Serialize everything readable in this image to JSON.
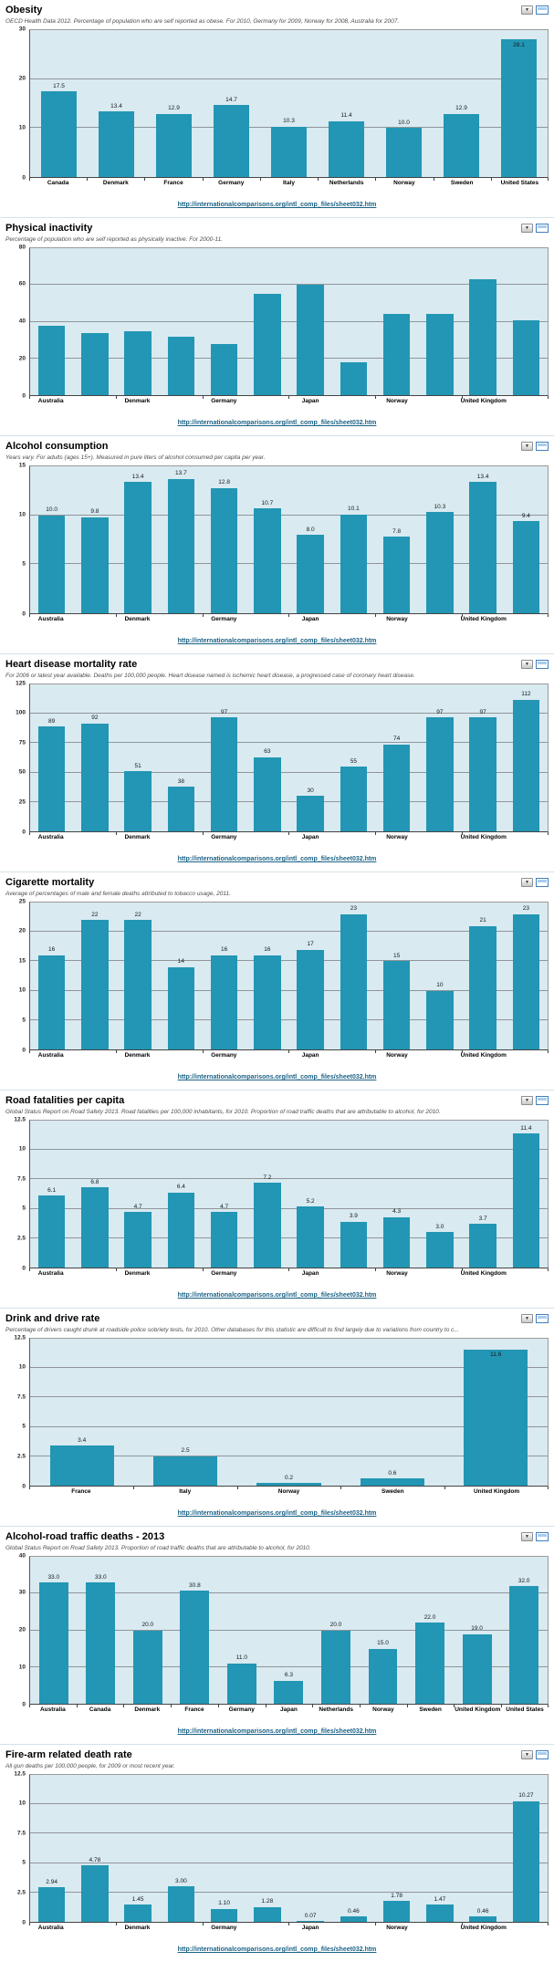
{
  "source_link": "http://internationalcomparisons.org/intl_comp_files/sheet032.htm",
  "colors": {
    "bar": "#2296b4",
    "plot_background": "#d9eaf1",
    "gridline": "#8f9698",
    "link": "#1b6286"
  },
  "chart_data": [
    {
      "type": "bar",
      "title": "Obesity",
      "subtitle": "OECD Health Data 2012. Percentage of population who are self reported as obese. For 2010, Germany for 2009, Norway for 2008, Australia for 2007.",
      "ylim": [
        0,
        30
      ],
      "yticks": [
        0,
        10,
        20,
        30
      ],
      "x_labels": [
        "Canada",
        "Denmark",
        "France",
        "Germany",
        "Italy",
        "Netherlands",
        "Norway",
        "Sweden",
        "United States"
      ],
      "values": [
        17.5,
        13.4,
        12.9,
        14.7,
        10.3,
        11.4,
        10.0,
        12.9,
        28.1
      ],
      "value_labels": [
        "17.5",
        "13.4",
        "12.9",
        "14.7",
        "10.3",
        "11.4",
        "10.0",
        "12.9",
        "28.1"
      ],
      "tick_every": 1,
      "source_link": "http://internationalcomparisons.org/intl_comp_files/sheet032.htm"
    },
    {
      "type": "bar",
      "title": "Physical inactivity",
      "subtitle": "Percentage of population who are self reported as physically inactive. For 2000-11.",
      "ylim": [
        0,
        80
      ],
      "yticks": [
        0,
        20,
        40,
        60,
        80
      ],
      "x_labels": [
        "Australia",
        "",
        "Denmark",
        "",
        "Germany",
        "",
        "Japan",
        "",
        "Norway",
        "",
        "United Kingdom",
        ""
      ],
      "values": [
        38,
        34,
        35,
        32,
        28,
        55,
        60,
        18,
        44,
        44,
        63,
        41
      ],
      "value_labels": null,
      "tick_every": 2,
      "source_link": "http://internationalcomparisons.org/intl_comp_files/sheet032.htm"
    },
    {
      "type": "bar",
      "title": "Alcohol consumption",
      "subtitle": "Years vary. For adults (ages 15+). Measured in pure liters of alcohol consumed per capita per year.",
      "ylim": [
        0,
        15
      ],
      "yticks": [
        0,
        5,
        10,
        15
      ],
      "x_labels": [
        "Australia",
        "",
        "Denmark",
        "",
        "Germany",
        "",
        "Japan",
        "",
        "Norway",
        "",
        "United Kingdom",
        ""
      ],
      "values": [
        10.0,
        9.8,
        13.4,
        13.7,
        12.8,
        10.7,
        8.0,
        10.1,
        7.8,
        10.3,
        13.4,
        9.4
      ],
      "value_labels": [
        "10.0",
        "9.8",
        "13.4",
        "13.7",
        "12.8",
        "10.7",
        "8.0",
        "10.1",
        "7.8",
        "10.3",
        "13.4",
        "9.4"
      ],
      "tick_every": 2,
      "source_link": "http://internationalcomparisons.org/intl_comp_files/sheet032.htm"
    },
    {
      "type": "bar",
      "title": "Heart disease mortality rate",
      "subtitle": "For 2006 or latest year available. Deaths per 100,000 people. Heart disease named is ischemic heart disease, a progressed case of coronary heart disease.",
      "ylim": [
        0,
        125
      ],
      "yticks": [
        0,
        25,
        50,
        75,
        100,
        125
      ],
      "x_labels": [
        "Australia",
        "",
        "Denmark",
        "",
        "Germany",
        "",
        "Japan",
        "",
        "Norway",
        "",
        "United Kingdom",
        ""
      ],
      "values": [
        89,
        92,
        51,
        38,
        97,
        63,
        30,
        55,
        74,
        97,
        97,
        112
      ],
      "value_labels": [
        "89",
        "92",
        "51",
        "38",
        "97",
        "63",
        "30",
        "55",
        "74",
        "97",
        "97",
        "112"
      ],
      "tick_every": 2,
      "source_link": "http://internationalcomparisons.org/intl_comp_files/sheet032.htm"
    },
    {
      "type": "bar",
      "title": "Cigarette mortality",
      "subtitle": "Average of percentages of male and female deaths attributed to tobacco usage, 2011.",
      "ylim": [
        0,
        25
      ],
      "yticks": [
        0,
        5,
        10,
        15,
        20,
        25
      ],
      "x_labels": [
        "Australia",
        "",
        "Denmark",
        "",
        "Germany",
        "",
        "Japan",
        "",
        "Norway",
        "",
        "United Kingdom",
        ""
      ],
      "values": [
        16,
        22,
        22,
        14,
        16,
        16,
        17,
        23,
        15,
        10,
        21,
        23
      ],
      "value_labels": [
        "16",
        "22",
        "22",
        "14",
        "16",
        "16",
        "17",
        "23",
        "15",
        "10",
        "21",
        "23"
      ],
      "tick_every": 2,
      "source_link": "http://internationalcomparisons.org/intl_comp_files/sheet032.htm"
    },
    {
      "type": "bar",
      "title": "Road fatalities per capita",
      "subtitle": "Global Status Report on Road Safety 2013. Road fatalities per 100,000 inhabitants, for 2010. Proportion of road traffic deaths that are attributable to alcohol, for 2010.",
      "ylim": [
        0,
        12.5
      ],
      "yticks": [
        0,
        2.5,
        5,
        7.5,
        10,
        12.5
      ],
      "x_labels": [
        "Australia",
        "",
        "Denmark",
        "",
        "Germany",
        "",
        "Japan",
        "",
        "Norway",
        "",
        "United Kingdom",
        ""
      ],
      "values": [
        6.1,
        6.8,
        4.7,
        6.4,
        4.7,
        7.2,
        5.2,
        3.9,
        4.3,
        3.0,
        3.7,
        11.4
      ],
      "value_labels": [
        "6.1",
        "6.8",
        "4.7",
        "6.4",
        "4.7",
        "7.2",
        "5.2",
        "3.9",
        "4.3",
        "3.0",
        "3.7",
        "11.4"
      ],
      "tick_every": 2,
      "source_link": "http://internationalcomparisons.org/intl_comp_files/sheet032.htm"
    },
    {
      "type": "bar",
      "title": "Drink and drive rate",
      "subtitle": "Percentage of drivers caught drunk at roadside police sobriety tests, for 2010. Other databases for this statistic are difficult to find largely due to variations from country to c...",
      "ylim": [
        0,
        12.5
      ],
      "yticks": [
        0,
        2.5,
        5,
        7.5,
        10,
        12.5
      ],
      "x_labels": [
        "France",
        "Italy",
        "Norway",
        "Sweden",
        "United Kingdom"
      ],
      "values": [
        3.4,
        2.5,
        0.2,
        0.6,
        11.6
      ],
      "value_labels": [
        "3.4",
        "2.5",
        "0.2",
        "0.6",
        "11.6"
      ],
      "tick_every": 1,
      "source_link": "http://internationalcomparisons.org/intl_comp_files/sheet032.htm"
    },
    {
      "type": "bar",
      "title": "Alcohol-road traffic deaths - 2013",
      "subtitle": "Global Status Report on Road Safety 2013. Proportion of road traffic deaths that are attributable to alcohol, for 2010.",
      "ylim": [
        0,
        40
      ],
      "yticks": [
        0,
        10,
        20,
        30,
        40
      ],
      "x_labels": [
        "Australia",
        "Canada",
        "Denmark",
        "France",
        "Germany",
        "Japan",
        "Netherlands",
        "Norway",
        "Sweden",
        "United Kingdom",
        "United States"
      ],
      "values": [
        33.0,
        33.0,
        20.0,
        30.8,
        11.0,
        6.3,
        20.0,
        15.0,
        22.0,
        19.0,
        32.0
      ],
      "value_labels": [
        "33.0",
        "33.0",
        "20.0",
        "30.8",
        "11.0",
        "6.3",
        "20.0",
        "15.0",
        "22.0",
        "19.0",
        "32.0"
      ],
      "tick_every": 1,
      "source_link": "http://internationalcomparisons.org/intl_comp_files/sheet032.htm"
    },
    {
      "type": "bar",
      "title": "Fire-arm related death rate",
      "subtitle": "All gun deaths per 100,000 people, for 2009 or most recent year.",
      "ylim": [
        0,
        12.5
      ],
      "yticks": [
        0,
        2.5,
        5,
        7.5,
        10,
        12.5
      ],
      "x_labels": [
        "Australia",
        "",
        "Denmark",
        "",
        "Germany",
        "",
        "Japan",
        "",
        "Norway",
        "",
        "United Kingdom",
        ""
      ],
      "values": [
        2.94,
        4.78,
        1.45,
        3.0,
        1.1,
        1.28,
        0.07,
        0.46,
        1.78,
        1.47,
        0.46,
        10.27
      ],
      "value_labels": [
        "2.94",
        "4.78",
        "1.45",
        "3.00",
        "1.10",
        "1.28",
        "0.07",
        "0.46",
        "1.78",
        "1.47",
        "0.46",
        "10.27"
      ],
      "tick_every": 2,
      "source_link": "http://internationalcomparisons.org/intl_comp_files/sheet032.htm"
    }
  ]
}
